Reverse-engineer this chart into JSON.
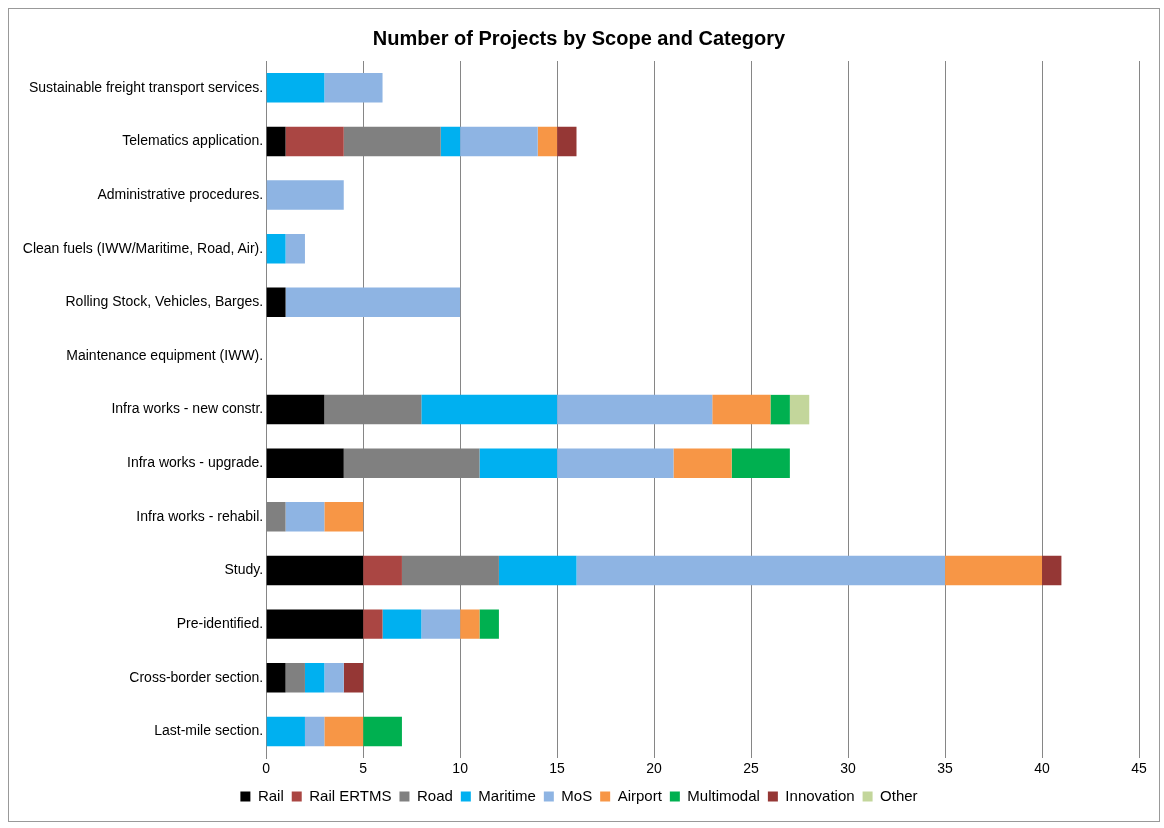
{
  "chart_data": {
    "type": "bar",
    "orientation": "horizontal",
    "stacked": true,
    "title": "Number of Projects by Scope and Category",
    "categories": [
      "Sustainable freight transport services.",
      "Telematics application.",
      "Administrative procedures.",
      "Clean fuels (IWW/Maritime, Road, Air).",
      "Rolling Stock, Vehicles, Barges.",
      "Maintenance equipment (IWW).",
      "Infra works - new constr.",
      "Infra works - upgrade.",
      "Infra works - rehabil.",
      "Study.",
      "Pre-identified.",
      "Cross-border section.",
      "Last-mile section."
    ],
    "series": [
      {
        "name": "Rail",
        "color": "#000000",
        "values": [
          null,
          1,
          null,
          null,
          1,
          null,
          3,
          4,
          null,
          5,
          5,
          1,
          null
        ]
      },
      {
        "name": "Rail ERTMS",
        "color": "#aa4643",
        "values": [
          null,
          3,
          null,
          null,
          null,
          null,
          null,
          null,
          null,
          2,
          1,
          null,
          null
        ]
      },
      {
        "name": "Road",
        "color": "#808080",
        "values": [
          null,
          5,
          null,
          null,
          null,
          null,
          5,
          7,
          1,
          5,
          null,
          1,
          null
        ]
      },
      {
        "name": "Maritime",
        "color": "#00b0f0",
        "values": [
          3,
          1,
          null,
          1,
          null,
          null,
          7,
          4,
          null,
          4,
          2,
          1,
          2
        ]
      },
      {
        "name": "MoS",
        "color": "#8eb4e3",
        "values": [
          3,
          4,
          4,
          1,
          9,
          null,
          8,
          6,
          2,
          19,
          2,
          1,
          1
        ]
      },
      {
        "name": "Airport",
        "color": "#f79646",
        "values": [
          null,
          1,
          null,
          null,
          null,
          null,
          3,
          3,
          2,
          5,
          1,
          null,
          2
        ]
      },
      {
        "name": "Multimodal",
        "color": "#00b050",
        "values": [
          null,
          null,
          null,
          null,
          null,
          null,
          1,
          3,
          null,
          null,
          1,
          null,
          2
        ]
      },
      {
        "name": "Innovation",
        "color": "#953735",
        "values": [
          null,
          1,
          null,
          null,
          null,
          null,
          null,
          null,
          null,
          1,
          null,
          1,
          null
        ]
      },
      {
        "name": "Other",
        "color": "#c3d69b",
        "values": [
          null,
          null,
          null,
          null,
          null,
          null,
          1,
          null,
          null,
          null,
          null,
          null,
          null
        ]
      }
    ],
    "xlim": [
      0,
      45
    ],
    "xticks": [
      0,
      5,
      10,
      15,
      20,
      25,
      30,
      35,
      40,
      45
    ],
    "grid": "x",
    "legend": "bottom"
  }
}
